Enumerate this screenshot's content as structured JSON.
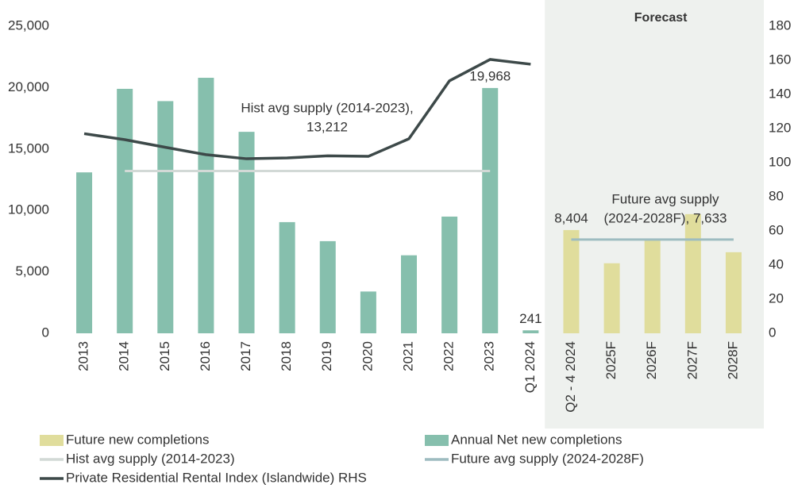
{
  "chart_data": {
    "type": "bar",
    "categories": [
      "2013",
      "2014",
      "2015",
      "2016",
      "2017",
      "2018",
      "2019",
      "2020",
      "2021",
      "2022",
      "2023",
      "Q1 2024",
      "Q2 - 4 2024",
      "2025F",
      "2026F",
      "2027F",
      "2028F"
    ],
    "series": [
      {
        "name": "Future new completions",
        "type": "bar",
        "color": "#e0dd9c",
        "values": [
          null,
          null,
          null,
          null,
          null,
          null,
          null,
          null,
          null,
          null,
          null,
          null,
          8404,
          5700,
          7600,
          9700,
          6600
        ],
        "value_labels": [
          null,
          null,
          null,
          null,
          null,
          null,
          null,
          null,
          null,
          null,
          null,
          null,
          "8,404",
          null,
          null,
          null,
          null
        ]
      },
      {
        "name": "Annual Net new completions",
        "type": "bar",
        "color": "#86bfad",
        "values": [
          13100,
          19900,
          18900,
          20800,
          16400,
          9050,
          7500,
          3400,
          6350,
          9500,
          19968,
          241,
          null,
          null,
          null,
          null,
          null
        ],
        "value_labels": [
          null,
          null,
          null,
          null,
          null,
          null,
          null,
          null,
          null,
          null,
          "19,968",
          "241",
          null,
          null,
          null,
          null,
          null
        ]
      },
      {
        "name": "Hist avg supply (2014-2023)",
        "type": "line",
        "color": "#d2d9d6",
        "values": [
          null,
          13212,
          13212,
          13212,
          13212,
          13212,
          13212,
          13212,
          13212,
          13212,
          13212,
          null,
          null,
          null,
          null,
          null,
          null
        ]
      },
      {
        "name": "Future avg supply (2024-2028F)",
        "type": "line",
        "color": "#9dbcc0",
        "values": [
          null,
          null,
          null,
          null,
          null,
          null,
          null,
          null,
          null,
          null,
          null,
          null,
          7633,
          7633,
          7633,
          7633,
          7633
        ]
      },
      {
        "name": "Private Residential Rental Index (Islandwide) RHS",
        "type": "line",
        "color": "#3d4949",
        "axis": "y2",
        "values": [
          117,
          113.5,
          109,
          104.7,
          102.3,
          102.8,
          104,
          103.7,
          114,
          148,
          160.5,
          157.7,
          null,
          null,
          null,
          null,
          null
        ]
      }
    ],
    "annotations": [
      {
        "lines": [
          "Hist avg supply (2014-2023),",
          "13,212"
        ]
      },
      {
        "lines": [
          "Future avg supply",
          "(2024-2028F),  7,633"
        ]
      }
    ],
    "forecast_label": "Forecast",
    "forecast_from": "Q2 - 4 2024",
    "ylim": [
      0,
      25000
    ],
    "yticks": [
      0,
      {
        "value": 5000,
        "label": "5,000"
      },
      {
        "value": 10000,
        "label": "10,000"
      },
      {
        "value": 15000,
        "label": "15,000"
      },
      {
        "value": 20000,
        "label": "20,000"
      },
      {
        "value": 25000,
        "label": "25,000"
      }
    ],
    "y2lim": [
      0,
      180
    ],
    "y2ticks": [
      0,
      20,
      40,
      60,
      80,
      100,
      120,
      140,
      160,
      180
    ],
    "grid": false
  }
}
